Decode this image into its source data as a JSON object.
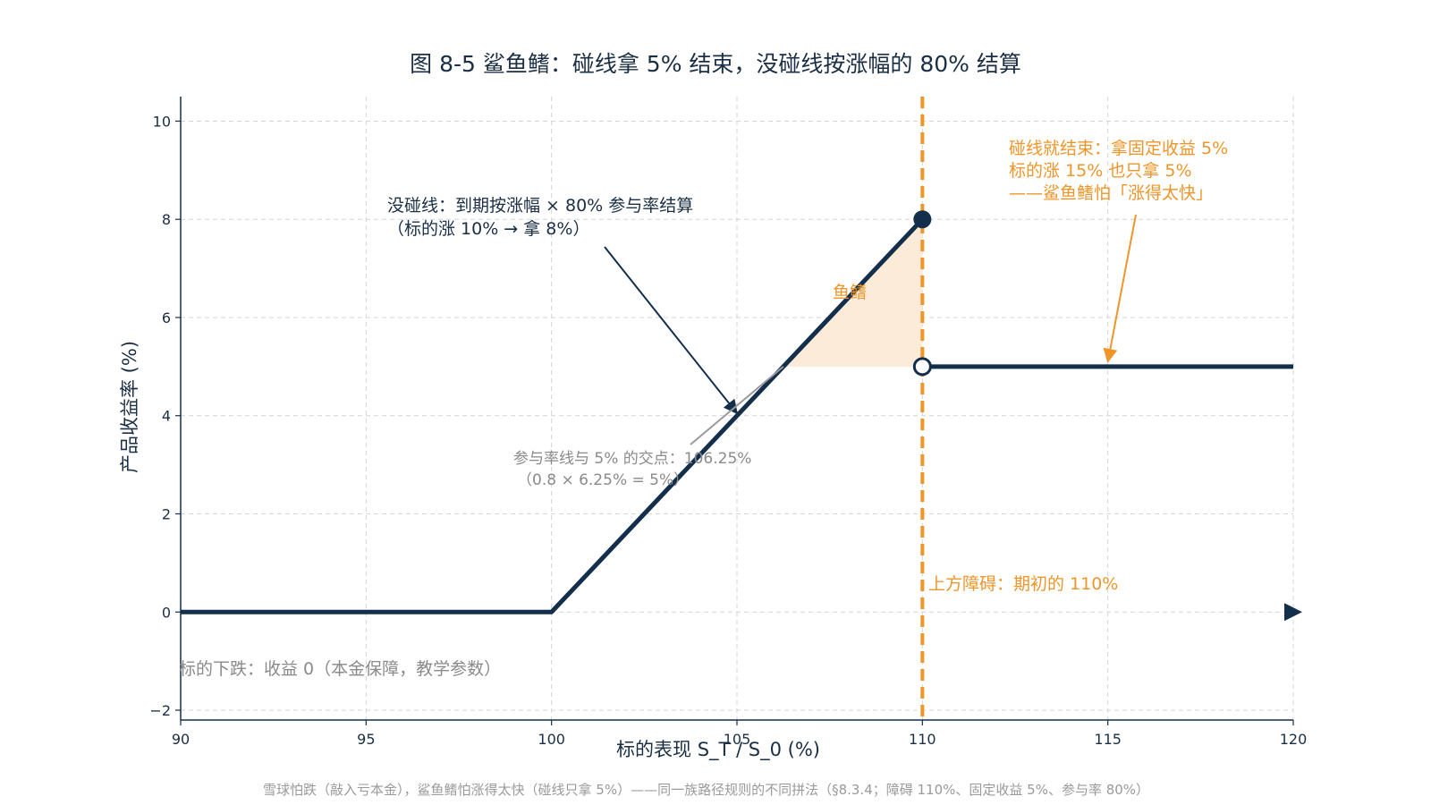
{
  "chart_data": {
    "type": "line",
    "title": "图 8-5 鲨鱼鳍：碰线拿 5% 结束，没碰线按涨幅的 80% 结算",
    "xlabel": "标的表现 S_T / S_0 (%)",
    "ylabel": "产品收益率 (%)",
    "xlim": [
      90,
      120
    ],
    "ylim": [
      -2.2,
      10.5
    ],
    "xticks": [
      90,
      95,
      100,
      105,
      110,
      115,
      120
    ],
    "yticks": [
      -2,
      0,
      2,
      4,
      6,
      8,
      10
    ],
    "xtick_labels": [
      "90",
      "95",
      "100",
      "105",
      "110",
      "115",
      "120"
    ],
    "ytick_labels": [
      "−2",
      "0",
      "2",
      "4",
      "6",
      "8",
      "10"
    ],
    "grid": true,
    "colors": {
      "payoff": "#132f4c",
      "barrier": "#f0952a",
      "fin_fill": "#fcebd9",
      "text": "#1a2e44",
      "muted": "#8a8a8a"
    },
    "series": [
      {
        "segments": [
          [
            [
              90,
              0
            ],
            [
              100,
              0
            ],
            [
              110,
              8
            ]
          ],
          [
            [
              110,
              5
            ],
            [
              120,
              5
            ]
          ]
        ]
      }
    ],
    "markers": {
      "filled": [
        110,
        8
      ],
      "hollow": [
        110,
        5
      ]
    },
    "barrier": {
      "x": 110,
      "label": "上方障碍：期初的 110%"
    },
    "fin_region": {
      "label": "鱼鳍",
      "points": [
        [
          106.25,
          5
        ],
        [
          110,
          8
        ],
        [
          110,
          5
        ]
      ]
    },
    "annotations": {
      "no_touch": {
        "line1": "没碰线：到期按涨幅 × 80% 参与率结算",
        "line2": "（标的涨 10% → 拿 8%）",
        "arrow_to": [
          105,
          4.05
        ]
      },
      "touch": {
        "line1": "碰线就结束：拿固定收益 5%",
        "line2": "标的涨 15% 也只拿 5%",
        "line3": "——鲨鱼鳍怕「涨得太快」",
        "arrow_to": [
          115,
          5.1
        ]
      },
      "intersection": {
        "line1": "参与率线与 5% 的交点：106.25%",
        "line2": "（0.8 × 6.25% = 5%）",
        "arrow_to": [
          106.25,
          5
        ]
      },
      "downside": "标的下跌：收益 0（本金保障，教学参数）"
    },
    "footnote": "雪球怕跌（敲入亏本金），鲨鱼鳍怕涨得太快（碰线只拿 5%）——同一族路径规则的不同拼法（§8.3.4；障碍 110%、固定收益 5%、参与率 80%）"
  }
}
